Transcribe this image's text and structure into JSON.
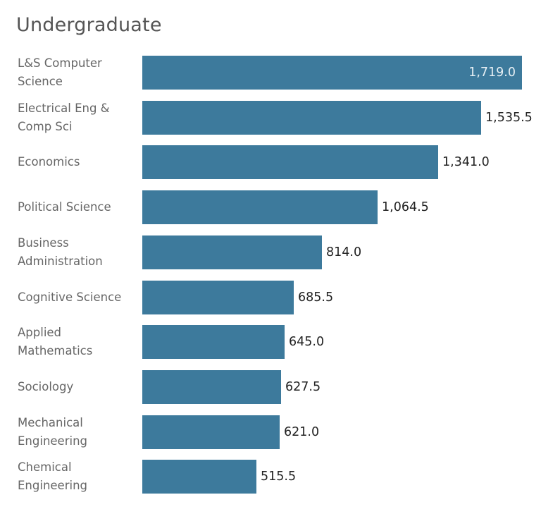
{
  "title": "Undergraduate",
  "colors": {
    "bar": "#3d7a9c",
    "label": "#666666",
    "value": "#222222",
    "value_inside": "#e8f0f5"
  },
  "chart_data": {
    "type": "bar",
    "orientation": "horizontal",
    "title": "Undergraduate",
    "xlabel": "",
    "ylabel": "",
    "categories": [
      "L&S Computer Science",
      "Electrical Eng & Comp Sci",
      "Economics",
      "Political Science",
      "Business Administration",
      "Cognitive Science",
      "Applied Mathematics",
      "Sociology",
      "Mechanical Engineering",
      "Chemical Engineering"
    ],
    "values": [
      1719.0,
      1535.5,
      1341.0,
      1064.5,
      814.0,
      685.5,
      645.0,
      627.5,
      621.0,
      515.5
    ],
    "value_labels": [
      "1,719.0",
      "1,535.5",
      "1,341.0",
      "1,064.5",
      "814.0",
      "685.5",
      "645.0",
      "627.5",
      "621.0",
      "515.5"
    ],
    "xlim": [
      0,
      1719.0
    ],
    "grid": false,
    "legend": null
  },
  "rows": [
    {
      "line1": "L&S Computer",
      "line2": "Science",
      "value": "1,719.0"
    },
    {
      "line1": "Electrical Eng &",
      "line2": "Comp Sci",
      "value": "1,535.5"
    },
    {
      "line1": "Economics",
      "line2": "",
      "value": "1,341.0"
    },
    {
      "line1": "Political Science",
      "line2": "",
      "value": "1,064.5"
    },
    {
      "line1": "Business",
      "line2": "Administration",
      "value": "814.0"
    },
    {
      "line1": "Cognitive Science",
      "line2": "",
      "value": "685.5"
    },
    {
      "line1": "Applied",
      "line2": "Mathematics",
      "value": "645.0"
    },
    {
      "line1": "Sociology",
      "line2": "",
      "value": "627.5"
    },
    {
      "line1": "Mechanical",
      "line2": "Engineering",
      "value": "621.0"
    },
    {
      "line1": "Chemical",
      "line2": "Engineering",
      "value": "515.5"
    }
  ]
}
